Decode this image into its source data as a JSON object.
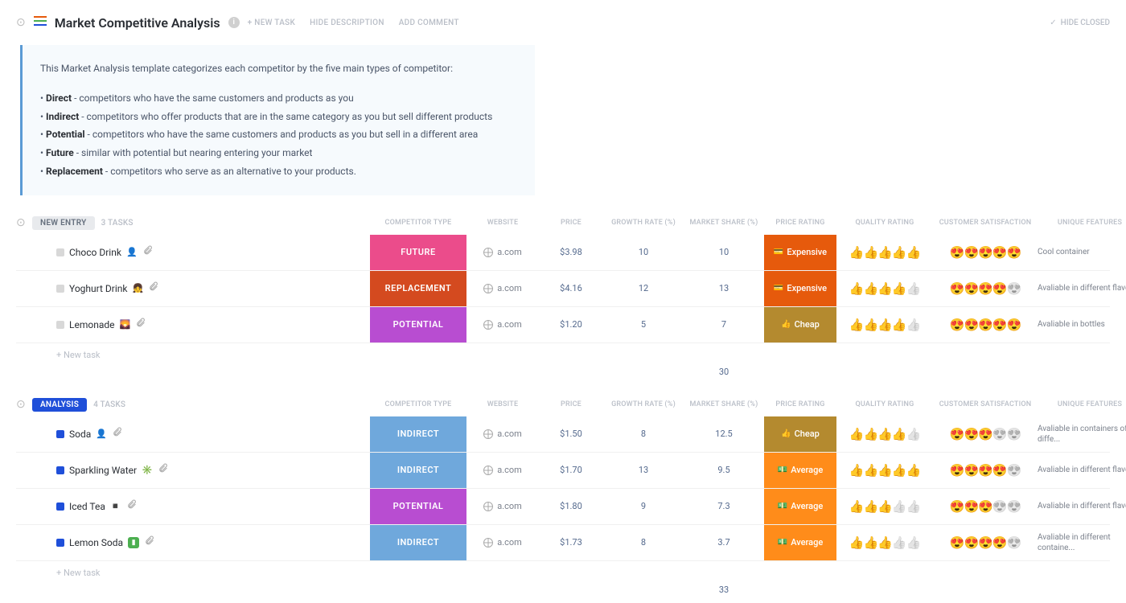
{
  "header": {
    "title": "Market Competitive Analysis",
    "actions": {
      "new_task": "+ NEW TASK",
      "hide_description": "HIDE DESCRIPTION",
      "add_comment": "ADD COMMENT"
    },
    "hide_closed": "HIDE CLOSED"
  },
  "description": {
    "intro": "This Market Analysis template categorizes each competitor by the five main types of competitor:",
    "bullets": [
      {
        "term": "Direct",
        "text": " - competitors who have the same customers and products as you"
      },
      {
        "term": "Indirect",
        "text": " - competitors who offer products that are in the same category as you but sell different products"
      },
      {
        "term": "Potential",
        "text": " - competitors who have the same customers and products as you but sell in a different area"
      },
      {
        "term": "Future",
        "text": " - similar with potential but nearing entering your market"
      },
      {
        "term": "Replacement",
        "text": " - competitors who serve as an alternative to your products."
      }
    ]
  },
  "columns": {
    "competitor_type": "COMPETITOR TYPE",
    "website": "WEBSITE",
    "price": "PRICE",
    "growth_rate": "GROWTH RATE (%)",
    "market_share": "MARKET SHARE (%)",
    "price_rating": "PRICE RATING",
    "quality_rating": "QUALITY RATING",
    "customer_satisfaction": "CUSTOMER SATISFACTION",
    "unique_features": "UNIQUE FEATURES"
  },
  "groups": [
    {
      "id": "new_entry",
      "label": "NEW ENTRY",
      "badge_class": "new-entry",
      "status_color": "grey",
      "count_label": "3 TASKS",
      "sum_market_share": "30",
      "tasks": [
        {
          "name": "Choco Drink",
          "emoji_icon": "👤",
          "competitor_type": "FUTURE",
          "type_class": "type-future",
          "website": "a.com",
          "price": "$3.98",
          "growth_rate": "10",
          "market_share": "10",
          "price_rating": "Expensive",
          "price_rating_class": "price-expensive",
          "price_rating_icon": "💳",
          "quality_active": 5,
          "quality_inactive": 0,
          "satisfaction_active": 5,
          "satisfaction_inactive": 0,
          "features": "Cool container"
        },
        {
          "name": "Yoghurt Drink",
          "emoji_icon": "👧",
          "competitor_type": "REPLACEMENT",
          "type_class": "type-replacement",
          "website": "a.com",
          "price": "$4.16",
          "growth_rate": "12",
          "market_share": "13",
          "price_rating": "Expensive",
          "price_rating_class": "price-expensive",
          "price_rating_icon": "💳",
          "quality_active": 4,
          "quality_inactive": 1,
          "satisfaction_active": 4,
          "satisfaction_inactive": 1,
          "features": "Avaliable in different flavors"
        },
        {
          "name": "Lemonade",
          "emoji_icon": "🌄",
          "competitor_type": "POTENTIAL",
          "type_class": "type-potential",
          "website": "a.com",
          "price": "$1.20",
          "growth_rate": "5",
          "market_share": "7",
          "price_rating": "Cheap",
          "price_rating_class": "price-cheap",
          "price_rating_icon": "👍",
          "quality_active": 4,
          "quality_inactive": 1,
          "satisfaction_active": 5,
          "satisfaction_inactive": 0,
          "features": "Avaliable in bottles"
        }
      ],
      "new_task_label": "+ New task"
    },
    {
      "id": "analysis",
      "label": "ANALYSIS",
      "badge_class": "analysis",
      "status_color": "blue",
      "count_label": "4 TASKS",
      "sum_market_share": "33",
      "tasks": [
        {
          "name": "Soda",
          "emoji_icon": "👤",
          "competitor_type": "INDIRECT",
          "type_class": "type-indirect",
          "website": "a.com",
          "price": "$1.50",
          "growth_rate": "8",
          "market_share": "12.5",
          "price_rating": "Cheap",
          "price_rating_class": "price-cheap",
          "price_rating_icon": "👍",
          "quality_active": 4,
          "quality_inactive": 1,
          "satisfaction_active": 3,
          "satisfaction_inactive": 2,
          "features": "Avaliable in containers of diffe..."
        },
        {
          "name": "Sparkling Water",
          "emoji_icon": "✳️",
          "competitor_type": "INDIRECT",
          "type_class": "type-indirect",
          "website": "a.com",
          "price": "$1.70",
          "growth_rate": "13",
          "market_share": "9.5",
          "price_rating": "Average",
          "price_rating_class": "price-average",
          "price_rating_icon": "💵",
          "quality_active": 5,
          "quality_inactive": 0,
          "satisfaction_active": 4,
          "satisfaction_inactive": 1,
          "features": "Avaliable in different flavors"
        },
        {
          "name": "Iced Tea",
          "emoji_icon": "◾",
          "competitor_type": "POTENTIAL",
          "type_class": "type-potential",
          "website": "a.com",
          "price": "$1.80",
          "growth_rate": "9",
          "market_share": "7.3",
          "price_rating": "Average",
          "price_rating_class": "price-average",
          "price_rating_icon": "💵",
          "quality_active": 3,
          "quality_inactive": 2,
          "satisfaction_active": 3,
          "satisfaction_inactive": 2,
          "features": "Avaliable in different flavors"
        },
        {
          "name": "Lemon Soda",
          "emoji_icon": "avatar-green",
          "avatar_text": "▮",
          "competitor_type": "INDIRECT",
          "type_class": "type-indirect",
          "website": "a.com",
          "price": "$1.73",
          "growth_rate": "8",
          "market_share": "3.7",
          "price_rating": "Average",
          "price_rating_class": "price-average",
          "price_rating_icon": "💵",
          "quality_active": 3,
          "quality_inactive": 2,
          "satisfaction_active": 4,
          "satisfaction_inactive": 1,
          "features": "Avaliable in different containe..."
        }
      ],
      "new_task_label": "+ New task"
    }
  ],
  "colors": {
    "future": "#eb4c8b",
    "replacement": "#d44a1f",
    "potential": "#b84dd1",
    "indirect": "#6fa8dc",
    "expensive": "#e65a0c",
    "cheap": "#b48a2f",
    "average": "#ff8c1a",
    "description_bg": "#f6fafd",
    "description_border": "#5b9bd5",
    "analysis_badge": "#1f4fd9"
  }
}
